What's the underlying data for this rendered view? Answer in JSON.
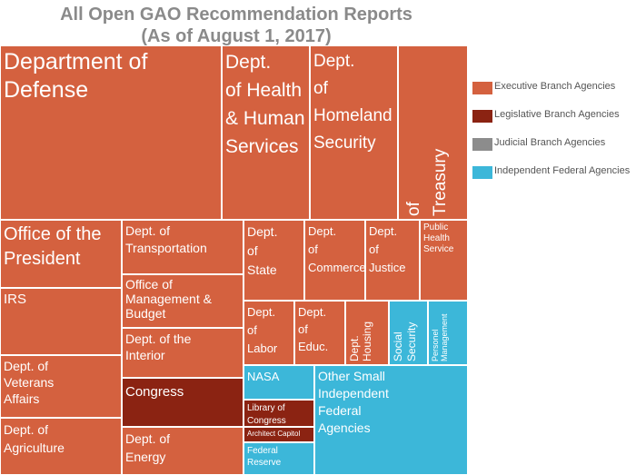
{
  "chart_data": {
    "type": "treemap",
    "title": "All Open GAO Recommendation Reports",
    "subtitle": "(As of August 1, 2017)",
    "legend_position": "right",
    "categories": [
      {
        "name": "Executive Branch Agencies",
        "color": "#d4613f"
      },
      {
        "name": "Legislative Branch Agencies",
        "color": "#8b2312"
      },
      {
        "name": "Judicial Branch Agencies",
        "color": "#8c8c8c"
      },
      {
        "name": "Independent Federal Agencies",
        "color": "#3cb7d9"
      }
    ],
    "tiles": [
      {
        "label": "Department of\nDefense",
        "category": "Executive Branch Agencies"
      },
      {
        "label": "Dept.\nof Health\n& Human\nServices",
        "category": "Executive Branch Agencies"
      },
      {
        "label": "Dept.\nof\nHomeland\nSecurity",
        "category": "Executive Branch Agencies"
      },
      {
        "label": "Dept.\nof     Treasury",
        "category": "Executive Branch Agencies"
      },
      {
        "label": "Office of the\nPresident",
        "category": "Executive Branch Agencies"
      },
      {
        "label": "IRS",
        "category": "Executive Branch Agencies"
      },
      {
        "label": "Dept. of\nVeterans\nAffairs",
        "category": "Executive Branch Agencies"
      },
      {
        "label": "Dept. of\nAgriculture",
        "category": "Executive Branch Agencies"
      },
      {
        "label": "Dept. of\nTransportation",
        "category": "Executive Branch Agencies"
      },
      {
        "label": "Office of\nManagement &\nBudget",
        "category": "Executive Branch Agencies"
      },
      {
        "label": "Dept. of the\nInterior",
        "category": "Executive Branch Agencies"
      },
      {
        "label": "Congress",
        "category": "Legislative Branch Agencies"
      },
      {
        "label": "Dept. of\nEnergy",
        "category": "Executive Branch Agencies"
      },
      {
        "label": "Dept.\nof\nState",
        "category": "Executive Branch Agencies"
      },
      {
        "label": "Dept.\nof\nCommerce",
        "category": "Executive Branch Agencies"
      },
      {
        "label": "Dept.\nof\nJustice",
        "category": "Executive Branch Agencies"
      },
      {
        "label": "Public\nHealth\nService",
        "category": "Executive Branch Agencies"
      },
      {
        "label": "Dept.\nof\nLabor",
        "category": "Executive Branch Agencies"
      },
      {
        "label": "Dept.\nof\nEduc.",
        "category": "Executive Branch Agencies"
      },
      {
        "label": "Dept.\nHousing",
        "category": "Executive Branch Agencies"
      },
      {
        "label": "Social\nSecurity",
        "category": "Independent Federal Agencies"
      },
      {
        "label": "Personel\nManagement",
        "category": "Independent Federal Agencies"
      },
      {
        "label": "NASA",
        "category": "Independent Federal Agencies"
      },
      {
        "label": "Library of\nCongress",
        "category": "Legislative Branch Agencies"
      },
      {
        "label": "Architect Capitol",
        "category": "Legislative Branch Agencies"
      },
      {
        "label": "Federal\nReserve",
        "category": "Independent Federal Agencies"
      },
      {
        "label": "Other Small\nIndependent\nFederal\nAgencies",
        "category": "Independent Federal Agencies"
      }
    ]
  }
}
